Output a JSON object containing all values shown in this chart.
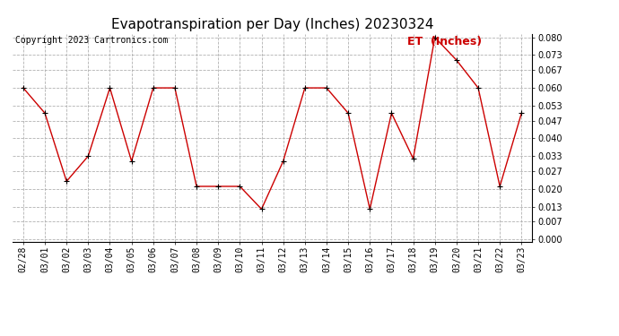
{
  "title": "Evapotranspiration per Day (Inches) 20230324",
  "copyright_text": "Copyright 2023 Cartronics.com",
  "legend_label": "ET  (Inches)",
  "dates": [
    "02/28",
    "03/01",
    "03/02",
    "03/03",
    "03/04",
    "03/05",
    "03/06",
    "03/07",
    "03/08",
    "03/09",
    "03/10",
    "03/11",
    "03/12",
    "03/13",
    "03/14",
    "03/15",
    "03/16",
    "03/17",
    "03/18",
    "03/19",
    "03/20",
    "03/21",
    "03/22",
    "03/23"
  ],
  "values": [
    0.06,
    0.05,
    0.023,
    0.033,
    0.06,
    0.031,
    0.06,
    0.06,
    0.021,
    0.021,
    0.021,
    0.012,
    0.031,
    0.06,
    0.06,
    0.05,
    0.012,
    0.05,
    0.032,
    0.08,
    0.071,
    0.06,
    0.021,
    0.05
  ],
  "line_color": "#cc0000",
  "marker": "+",
  "marker_color": "#000000",
  "marker_size": 5,
  "background_color": "#ffffff",
  "grid_color": "#aaaaaa",
  "ylim": [
    -0.001,
    0.0815
  ],
  "yticks": [
    0.0,
    0.007,
    0.013,
    0.02,
    0.027,
    0.033,
    0.04,
    0.047,
    0.053,
    0.06,
    0.067,
    0.073,
    0.08
  ],
  "title_fontsize": 11,
  "copyright_fontsize": 7,
  "legend_fontsize": 9,
  "tick_fontsize": 7,
  "legend_color": "#cc0000",
  "fig_width": 6.9,
  "fig_height": 3.75,
  "dpi": 100
}
